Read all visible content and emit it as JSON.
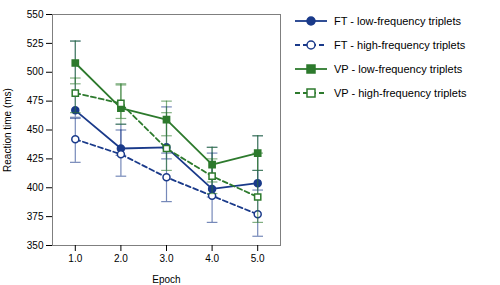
{
  "chart_data": {
    "type": "line",
    "xlabel": "Epoch",
    "ylabel": "Reaction time (ms)",
    "x": [
      1,
      2,
      3,
      4,
      5
    ],
    "xlim": [
      0.5,
      5.5
    ],
    "xticks": [
      1,
      2,
      3,
      4,
      5
    ],
    "ylim": [
      350,
      550
    ],
    "yticks": [
      350,
      375,
      400,
      425,
      450,
      475,
      500,
      525,
      550
    ],
    "grid": false,
    "legend": "right",
    "series": [
      {
        "name": "FT - low-frequency triplets",
        "color": "#1a3a8a",
        "marker": "circle",
        "line_style": "solid",
        "values": [
          467,
          434,
          435,
          399,
          404
        ],
        "error_lower": [
          6,
          6,
          10,
          7,
          6
        ],
        "error_upper": [
          60,
          21,
          35,
          36,
          41
        ]
      },
      {
        "name": "FT - high-frequency triplets",
        "color": "#1a3a8a",
        "marker": "circle-open",
        "line_style": "dashed",
        "values": [
          442,
          429,
          409,
          393,
          377
        ],
        "error_lower": [
          20,
          19,
          21,
          23,
          19
        ],
        "error_upper": [
          18,
          21,
          21,
          37,
          38
        ]
      },
      {
        "name": "VP - low-frequency triplets",
        "color": "#2d7a2d",
        "marker": "square",
        "line_style": "solid",
        "values": [
          508,
          469,
          459,
          420,
          430
        ],
        "error_lower": [
          18,
          14,
          14,
          15,
          15
        ],
        "error_upper": [
          19,
          20,
          16,
          15,
          15
        ]
      },
      {
        "name": "VP - high-frequency triplets",
        "color": "#2d7a2d",
        "marker": "square-open",
        "line_style": "dashed",
        "values": [
          482,
          473,
          434,
          410,
          392
        ],
        "error_lower": [
          17,
          13,
          19,
          15,
          22
        ],
        "error_upper": [
          13,
          17,
          31,
          15,
          38
        ]
      }
    ]
  }
}
